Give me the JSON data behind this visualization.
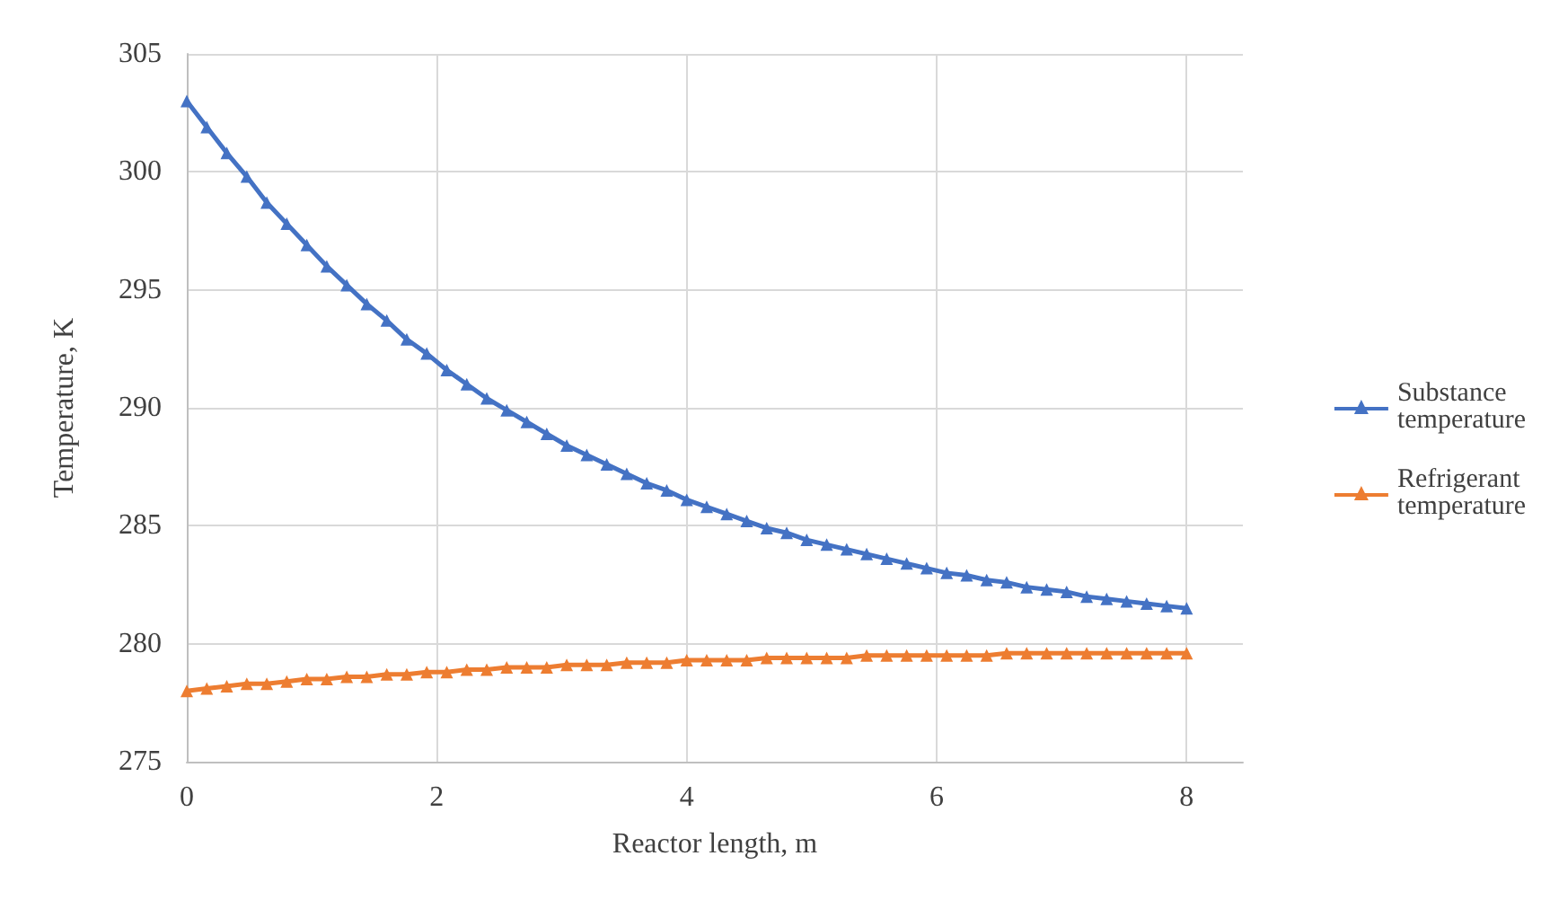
{
  "chart_data": {
    "type": "line",
    "xlabel": "Reactor length, m",
    "ylabel": "Temperature, K",
    "x": [
      0,
      0.16,
      0.32,
      0.48,
      0.64,
      0.8,
      0.96,
      1.12,
      1.28,
      1.44,
      1.6,
      1.76,
      1.92,
      2.08,
      2.24,
      2.4,
      2.56,
      2.72,
      2.88,
      3.04,
      3.2,
      3.36,
      3.52,
      3.68,
      3.84,
      4,
      4.16,
      4.32,
      4.48,
      4.64,
      4.8,
      4.96,
      5.12,
      5.28,
      5.44,
      5.6,
      5.76,
      5.92,
      6.08,
      6.24,
      6.4,
      6.56,
      6.72,
      6.88,
      7.04,
      7.2,
      7.36,
      7.52,
      7.68,
      7.84,
      8
    ],
    "series": [
      {
        "name": "Substance temperature",
        "color": "#4472c4",
        "values": [
          303.0,
          301.9,
          300.8,
          299.8,
          298.7,
          297.8,
          296.9,
          296.0,
          295.2,
          294.4,
          293.7,
          292.9,
          292.3,
          291.6,
          291.0,
          290.4,
          289.9,
          289.4,
          288.9,
          288.4,
          288.0,
          287.6,
          287.2,
          286.8,
          286.5,
          286.1,
          285.8,
          285.5,
          285.2,
          284.9,
          284.7,
          284.4,
          284.2,
          284.0,
          283.8,
          283.6,
          283.4,
          283.2,
          283.0,
          282.9,
          282.7,
          282.6,
          282.4,
          282.3,
          282.2,
          282.0,
          281.9,
          281.8,
          281.7,
          281.6,
          281.5
        ]
      },
      {
        "name": "Refrigerant temperature",
        "color": "#ed7d31",
        "values": [
          278.0,
          278.1,
          278.2,
          278.3,
          278.3,
          278.4,
          278.5,
          278.5,
          278.6,
          278.6,
          278.7,
          278.7,
          278.8,
          278.8,
          278.9,
          278.9,
          279.0,
          279.0,
          279.0,
          279.1,
          279.1,
          279.1,
          279.2,
          279.2,
          279.2,
          279.3,
          279.3,
          279.3,
          279.3,
          279.4,
          279.4,
          279.4,
          279.4,
          279.4,
          279.5,
          279.5,
          279.5,
          279.5,
          279.5,
          279.5,
          279.5,
          279.6,
          279.6,
          279.6,
          279.6,
          279.6,
          279.6,
          279.6,
          279.6,
          279.6,
          279.6
        ]
      }
    ],
    "xlim": [
      0,
      8.45
    ],
    "xticks": [
      0,
      2,
      4,
      6,
      8
    ],
    "ylim": [
      275,
      305
    ],
    "yticks": [
      275,
      280,
      285,
      290,
      295,
      300,
      305
    ],
    "grid": true,
    "legend": "right",
    "marker": "triangle",
    "line_style": "solid"
  }
}
